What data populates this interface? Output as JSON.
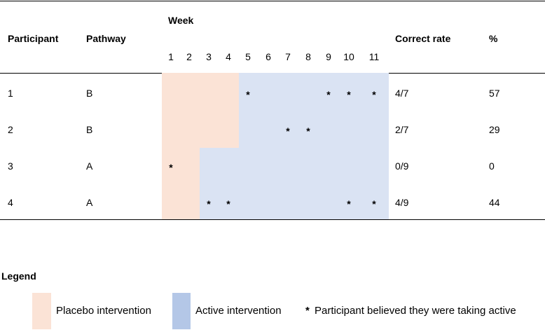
{
  "table": {
    "headers": {
      "participant": "Participant",
      "pathway": "Pathway",
      "week": "Week",
      "correct_rate": "Correct rate",
      "percent": "%"
    },
    "weeks": [
      "1",
      "2",
      "3",
      "4",
      "5",
      "6",
      "7",
      "8",
      "9",
      "10",
      "11"
    ],
    "rows": [
      {
        "participant": "1",
        "pathway": "B",
        "correct_rate": "4/7",
        "percent": "57",
        "placebo_weeks": 4,
        "believed_active_weeks": [
          5,
          9,
          10,
          11
        ]
      },
      {
        "participant": "2",
        "pathway": "B",
        "correct_rate": "2/7",
        "percent": "29",
        "placebo_weeks": 4,
        "believed_active_weeks": [
          7,
          8
        ]
      },
      {
        "participant": "3",
        "pathway": "A",
        "correct_rate": "0/9",
        "percent": "0",
        "placebo_weeks": 2,
        "believed_active_weeks": [
          1
        ]
      },
      {
        "participant": "4",
        "pathway": "A",
        "correct_rate": "4/9",
        "percent": "44",
        "placebo_weeks": 2,
        "believed_active_weeks": [
          3,
          4,
          10,
          11
        ]
      }
    ],
    "asterisk": "*"
  },
  "legend": {
    "title": "Legend",
    "placebo_label": "Placebo intervention",
    "active_label": "Active intervention",
    "asterisk_symbol": "*",
    "asterisk_label": "Participant believed they were taking active"
  },
  "colors": {
    "placebo": "#fbe3d6",
    "active": "#dae3f3",
    "placebo_legend": "#fbe3d6",
    "active_legend": "#b4c7e7"
  }
}
